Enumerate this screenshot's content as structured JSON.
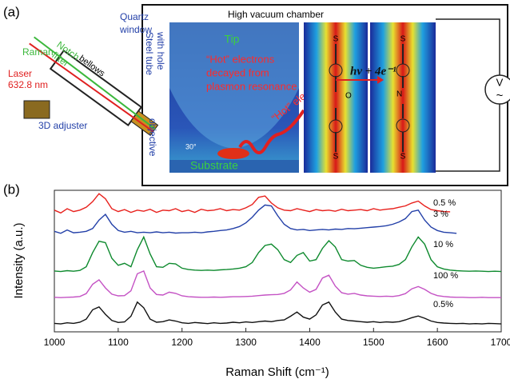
{
  "panel_labels": {
    "a": "(a)",
    "b": "(b)"
  },
  "schematic": {
    "chamber_title": "High vacuum chamber",
    "tip": "Tip",
    "hot_note": [
      "“Hot” electrons",
      "decayed from",
      "plasmon resonance"
    ],
    "substrate": "Substrate",
    "hot_path": "“Hot” electrons",
    "reaction": "hν + 4e⁻¹",
    "raman": "Raman",
    "notch": [
      "Notch",
      "filter"
    ],
    "laser": [
      "Laser",
      "632.8 nm"
    ],
    "quartz": [
      "Quartz",
      "window"
    ],
    "bellows": "bellows",
    "steel": [
      "Steel tube",
      "with hole"
    ],
    "objective": "objective",
    "adjuster": "3D adjuster",
    "angle": "30°",
    "voltmeter": [
      "V",
      "~"
    ],
    "sulfur": "S",
    "oxygen": "O",
    "nitrogen": "N"
  },
  "chart_data": {
    "type": "line",
    "xlabel": "Raman Shift (cm⁻¹)",
    "ylabel": "Intensity (a.u.)",
    "x": [
      1000,
      1010,
      1020,
      1030,
      1040,
      1050,
      1060,
      1070,
      1080,
      1090,
      1100,
      1110,
      1120,
      1130,
      1140,
      1150,
      1160,
      1170,
      1180,
      1190,
      1200,
      1210,
      1220,
      1230,
      1240,
      1250,
      1260,
      1270,
      1280,
      1290,
      1300,
      1310,
      1320,
      1330,
      1340,
      1350,
      1360,
      1370,
      1380,
      1390,
      1400,
      1410,
      1420,
      1430,
      1440,
      1450,
      1460,
      1470,
      1480,
      1490,
      1500,
      1510,
      1520,
      1530,
      1540,
      1550,
      1560,
      1570,
      1580,
      1590,
      1600,
      1610,
      1620,
      1630,
      1640,
      1650,
      1660,
      1670,
      1680,
      1690,
      1700
    ],
    "xlim": [
      1000,
      1700
    ],
    "xticks": [
      1000,
      1100,
      1200,
      1300,
      1400,
      1500,
      1600,
      1700
    ],
    "ylim": [
      0,
      5
    ],
    "series": [
      {
        "name": "0.5 %",
        "color": "#e8201c",
        "values": [
          4.3,
          4.2,
          4.35,
          4.25,
          4.3,
          4.4,
          4.6,
          4.88,
          4.7,
          4.35,
          4.25,
          4.32,
          4.22,
          4.3,
          4.26,
          4.33,
          4.22,
          4.3,
          4.28,
          4.35,
          4.25,
          4.3,
          4.22,
          4.33,
          4.28,
          4.3,
          4.35,
          4.28,
          4.32,
          4.3,
          4.38,
          4.5,
          4.75,
          4.8,
          4.55,
          4.38,
          4.3,
          4.28,
          4.35,
          4.3,
          4.25,
          4.32,
          4.28,
          4.3,
          4.26,
          4.33,
          4.28,
          4.3,
          4.32,
          4.28,
          4.35,
          4.3,
          4.33,
          4.35,
          4.4,
          4.45,
          4.55,
          4.62,
          4.45,
          4.32,
          4.28,
          4.25,
          4.24,
          null,
          null,
          null,
          null,
          null,
          null,
          null,
          null
        ]
      },
      {
        "name": "3 %",
        "color": "#2340a8",
        "values": [
          3.55,
          3.48,
          3.6,
          3.5,
          3.52,
          3.55,
          3.65,
          3.95,
          4.15,
          3.8,
          3.58,
          3.52,
          3.55,
          3.5,
          3.52,
          3.5,
          3.53,
          3.5,
          3.52,
          3.49,
          3.5,
          3.5,
          3.52,
          3.5,
          3.53,
          3.55,
          3.58,
          3.6,
          3.65,
          3.72,
          3.85,
          4.05,
          4.3,
          4.48,
          4.45,
          4.1,
          3.8,
          3.65,
          3.6,
          3.62,
          3.58,
          3.6,
          3.62,
          3.6,
          3.63,
          3.62,
          3.65,
          3.64,
          3.66,
          3.68,
          3.7,
          3.72,
          3.75,
          3.8,
          3.88,
          4.0,
          4.25,
          4.3,
          3.95,
          3.7,
          3.58,
          3.52,
          3.5,
          3.48,
          null,
          null,
          null,
          null,
          null,
          null,
          null
        ]
      },
      {
        "name": "10 %",
        "color": "#0e8a2e",
        "values": [
          2.15,
          2.13,
          2.16,
          2.14,
          2.17,
          2.3,
          2.8,
          3.2,
          3.15,
          2.6,
          2.35,
          2.42,
          2.3,
          2.9,
          3.35,
          2.75,
          2.3,
          2.28,
          2.42,
          2.4,
          2.25,
          2.2,
          2.18,
          2.17,
          2.18,
          2.17,
          2.19,
          2.2,
          2.22,
          2.25,
          2.3,
          2.45,
          2.8,
          3.05,
          3.1,
          2.9,
          2.55,
          2.45,
          2.7,
          2.8,
          2.5,
          2.55,
          2.95,
          3.22,
          3.0,
          2.55,
          2.5,
          2.52,
          2.35,
          2.28,
          2.25,
          2.27,
          2.3,
          2.32,
          2.38,
          2.55,
          3.0,
          3.35,
          3.1,
          2.55,
          2.3,
          2.22,
          2.18,
          2.16,
          2.15,
          2.14,
          2.15,
          2.14,
          2.13,
          2.14,
          2.13
        ]
      },
      {
        "name": "100 %",
        "color": "#c452c4",
        "values": [
          1.22,
          1.21,
          1.22,
          1.23,
          1.25,
          1.35,
          1.68,
          1.84,
          1.55,
          1.33,
          1.27,
          1.28,
          1.45,
          2.05,
          2.15,
          1.55,
          1.32,
          1.3,
          1.4,
          1.36,
          1.27,
          1.24,
          1.23,
          1.22,
          1.22,
          1.23,
          1.22,
          1.23,
          1.24,
          1.24,
          1.25,
          1.26,
          1.28,
          1.3,
          1.31,
          1.32,
          1.36,
          1.48,
          1.76,
          1.55,
          1.4,
          1.5,
          1.9,
          2.0,
          1.62,
          1.38,
          1.33,
          1.36,
          1.3,
          1.27,
          1.26,
          1.25,
          1.26,
          1.25,
          1.28,
          1.35,
          1.52,
          1.6,
          1.5,
          1.36,
          1.28,
          1.25,
          1.23,
          1.22,
          1.22,
          1.21,
          1.21,
          1.22,
          1.21,
          1.21,
          1.21
        ]
      },
      {
        "name": "0.5%",
        "color": "#111111",
        "values": [
          0.3,
          0.28,
          0.32,
          0.3,
          0.34,
          0.45,
          0.78,
          0.88,
          0.62,
          0.4,
          0.33,
          0.35,
          0.55,
          1.05,
          0.85,
          0.45,
          0.34,
          0.36,
          0.42,
          0.38,
          0.32,
          0.3,
          0.33,
          0.31,
          0.29,
          0.32,
          0.3,
          0.31,
          0.34,
          0.32,
          0.35,
          0.33,
          0.36,
          0.38,
          0.36,
          0.4,
          0.42,
          0.55,
          0.7,
          0.52,
          0.45,
          0.6,
          0.95,
          1.05,
          0.7,
          0.45,
          0.4,
          0.38,
          0.36,
          0.34,
          0.36,
          0.33,
          0.35,
          0.34,
          0.36,
          0.42,
          0.5,
          0.56,
          0.48,
          0.38,
          0.33,
          0.31,
          0.3,
          0.29,
          0.3,
          0.28,
          0.29,
          0.28,
          0.3,
          0.29,
          0.28
        ]
      }
    ]
  }
}
